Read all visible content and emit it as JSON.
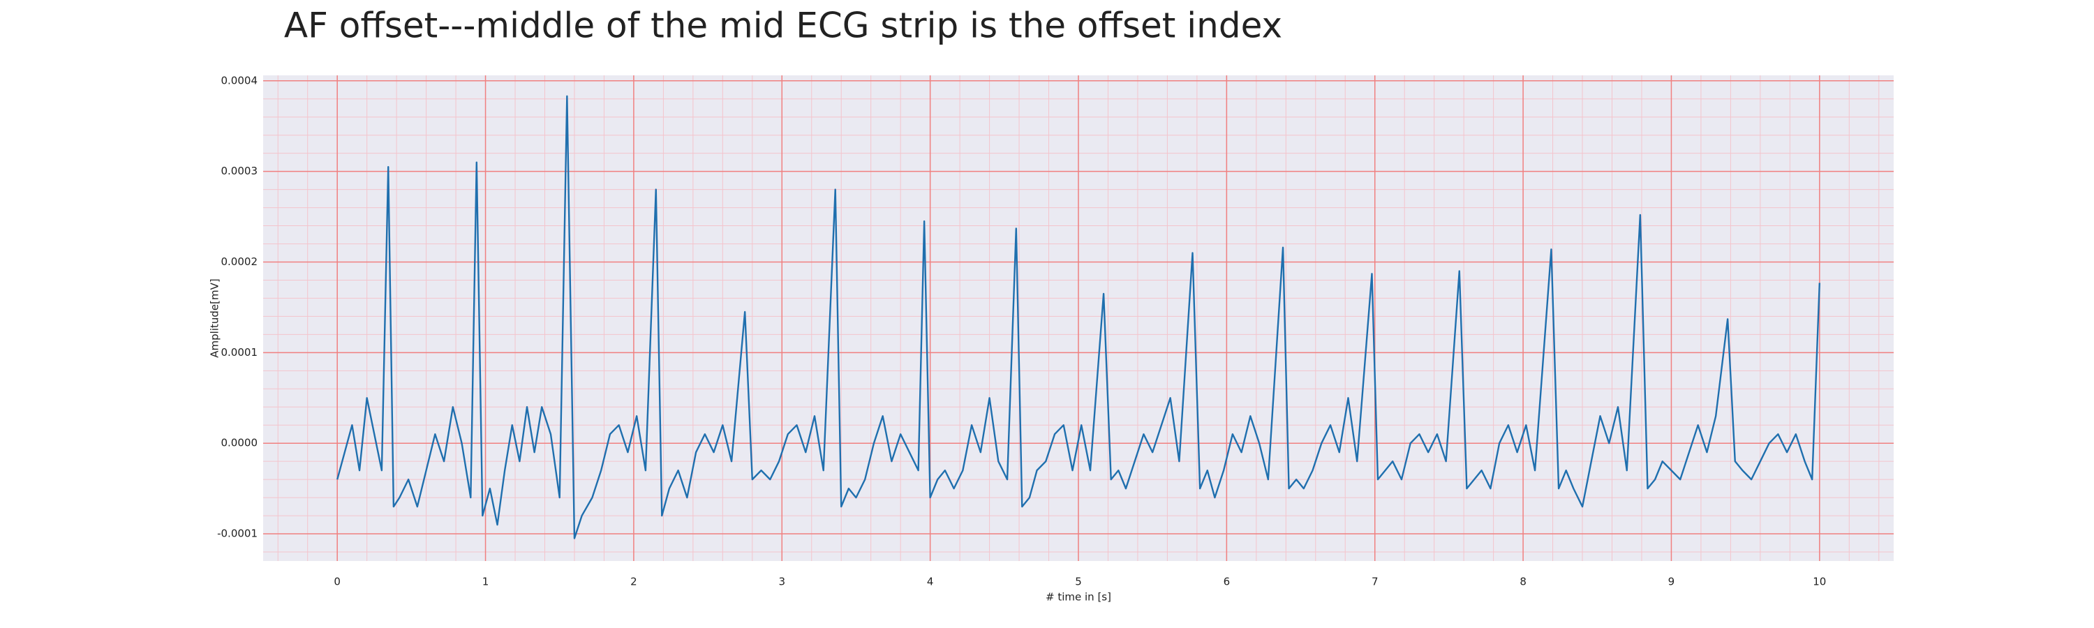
{
  "chart_data": {
    "type": "line",
    "title": "AF offset---middle of the mid ECG strip is the offset index",
    "xlabel": "# time in [s]",
    "ylabel": "Amplitude[mV]",
    "color": "#1f6fae",
    "background": "#eaeaf2",
    "grid": true,
    "grid_color": "#f08080",
    "minor_grid": true,
    "xlim": [
      -0.5,
      10.5
    ],
    "ylim": [
      -0.00013,
      0.000406
    ],
    "xticks": [
      0,
      1,
      2,
      3,
      4,
      5,
      6,
      7,
      8,
      9,
      10
    ],
    "yticks": [
      -0.0001,
      {
        "value": 0,
        "label": "0.0000"
      },
      0.0001,
      0.0002,
      0.0003,
      0.0004
    ],
    "x": [
      0,
      0.05,
      0.1,
      0.15,
      0.2,
      0.25,
      0.3,
      0.344,
      0.38,
      0.42,
      0.48,
      0.54,
      0.6,
      0.66,
      0.72,
      0.78,
      0.84,
      0.9,
      0.94,
      0.98,
      1.03,
      1.08,
      1.13,
      1.18,
      1.23,
      1.28,
      1.33,
      1.38,
      1.44,
      1.5,
      1.55,
      1.6,
      1.65,
      1.72,
      1.78,
      1.84,
      1.9,
      1.96,
      2.02,
      2.08,
      2.15,
      2.19,
      2.24,
      2.3,
      2.36,
      2.42,
      2.48,
      2.54,
      2.6,
      2.66,
      2.75,
      2.8,
      2.86,
      2.92,
      2.98,
      3.04,
      3.1,
      3.16,
      3.22,
      3.28,
      3.36,
      3.4,
      3.45,
      3.5,
      3.56,
      3.62,
      3.68,
      3.74,
      3.8,
      3.86,
      3.92,
      3.96,
      4.0,
      4.05,
      4.1,
      4.16,
      4.22,
      4.28,
      4.34,
      4.4,
      4.46,
      4.52,
      4.58,
      4.62,
      4.67,
      4.72,
      4.78,
      4.84,
      4.9,
      4.96,
      5.02,
      5.08,
      5.17,
      5.22,
      5.27,
      5.32,
      5.38,
      5.44,
      5.5,
      5.56,
      5.62,
      5.68,
      5.77,
      5.82,
      5.87,
      5.92,
      5.98,
      6.04,
      6.1,
      6.16,
      6.22,
      6.28,
      6.38,
      6.42,
      6.47,
      6.52,
      6.58,
      6.64,
      6.7,
      6.76,
      6.82,
      6.88,
      6.98,
      7.02,
      7.07,
      7.12,
      7.18,
      7.24,
      7.3,
      7.36,
      7.42,
      7.48,
      7.57,
      7.62,
      7.67,
      7.72,
      7.78,
      7.84,
      7.9,
      7.96,
      8.02,
      8.08,
      8.19,
      8.24,
      8.29,
      8.34,
      8.4,
      8.46,
      8.52,
      8.58,
      8.64,
      8.7,
      8.79,
      8.84,
      8.89,
      8.94,
      9.0,
      9.06,
      9.12,
      9.18,
      9.24,
      9.3,
      9.38,
      9.43,
      9.48,
      9.54,
      9.6,
      9.66,
      9.72,
      9.78,
      9.84,
      9.9,
      9.95,
      10.0
    ],
    "series": [
      {
        "values": [
          -4e-05,
          -1e-05,
          2e-05,
          -3e-05,
          5e-05,
          1e-05,
          -3e-05,
          0.000305,
          -7e-05,
          -6e-05,
          -4e-05,
          -7e-05,
          -3e-05,
          1e-05,
          -2e-05,
          4e-05,
          0,
          -6e-05,
          0.00031,
          -8e-05,
          -5e-05,
          -9e-05,
          -3e-05,
          2e-05,
          -2e-05,
          4e-05,
          -1e-05,
          4e-05,
          1e-05,
          -6e-05,
          0.000383,
          -0.000105,
          -8e-05,
          -6e-05,
          -3e-05,
          1e-05,
          2e-05,
          -1e-05,
          3e-05,
          -3e-05,
          0.00028,
          -8e-05,
          -5e-05,
          -3e-05,
          -6e-05,
          -1e-05,
          1e-05,
          -1e-05,
          2e-05,
          -2e-05,
          0.000145,
          -4e-05,
          -3e-05,
          -4e-05,
          -2e-05,
          1e-05,
          2e-05,
          -1e-05,
          3e-05,
          -3e-05,
          0.00028,
          -7e-05,
          -5e-05,
          -6e-05,
          -4e-05,
          0,
          3e-05,
          -2e-05,
          1e-05,
          -1e-05,
          -3e-05,
          0.000245,
          -6e-05,
          -4e-05,
          -3e-05,
          -5e-05,
          -3e-05,
          2e-05,
          -1e-05,
          5e-05,
          -2e-05,
          -4e-05,
          0.000237,
          -7e-05,
          -6e-05,
          -3e-05,
          -2e-05,
          1e-05,
          2e-05,
          -3e-05,
          2e-05,
          -3e-05,
          0.000165,
          -4e-05,
          -3e-05,
          -5e-05,
          -2e-05,
          1e-05,
          -1e-05,
          2e-05,
          5e-05,
          -2e-05,
          0.00021,
          -5e-05,
          -3e-05,
          -6e-05,
          -3e-05,
          1e-05,
          -1e-05,
          3e-05,
          0,
          -4e-05,
          0.000216,
          -5e-05,
          -4e-05,
          -5e-05,
          -3e-05,
          0,
          2e-05,
          -1e-05,
          5e-05,
          -2e-05,
          0.000187,
          -4e-05,
          -3e-05,
          -2e-05,
          -4e-05,
          0,
          1e-05,
          -1e-05,
          1e-05,
          -2e-05,
          0.00019,
          -5e-05,
          -4e-05,
          -3e-05,
          -5e-05,
          0,
          2e-05,
          -1e-05,
          2e-05,
          -3e-05,
          0.000214,
          -5e-05,
          -3e-05,
          -5e-05,
          -7e-05,
          -2e-05,
          3e-05,
          0,
          4e-05,
          -3e-05,
          0.000252,
          -5e-05,
          -4e-05,
          -2e-05,
          -3e-05,
          -4e-05,
          -1e-05,
          2e-05,
          -1e-05,
          3e-05,
          0.000137,
          -2e-05,
          -3e-05,
          -4e-05,
          -2e-05,
          0,
          1e-05,
          -1e-05,
          1e-05,
          -2e-05,
          -4e-05,
          0.000177
        ]
      }
    ]
  }
}
